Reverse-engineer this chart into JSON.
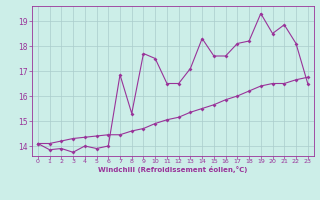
{
  "xlabel": "Windchill (Refroidissement éolien,°C)",
  "bg_color": "#cceee8",
  "grid_color": "#aacccc",
  "line_color": "#993399",
  "x_values": [
    0,
    1,
    2,
    3,
    4,
    5,
    6,
    7,
    8,
    9,
    10,
    11,
    12,
    13,
    14,
    15,
    16,
    17,
    18,
    19,
    20,
    21,
    22,
    23
  ],
  "line1_y": [
    14.1,
    13.85,
    13.9,
    13.75,
    14.0,
    13.9,
    14.0,
    16.85,
    15.3,
    17.7,
    17.5,
    16.5,
    16.5,
    17.1,
    18.3,
    17.6,
    17.6,
    18.1,
    18.2,
    19.3,
    18.5,
    18.85,
    18.1,
    16.5
  ],
  "line2_y": [
    14.1,
    14.1,
    14.2,
    14.3,
    14.35,
    14.4,
    14.45,
    14.45,
    14.6,
    14.7,
    14.9,
    15.05,
    15.15,
    15.35,
    15.5,
    15.65,
    15.85,
    16.0,
    16.2,
    16.4,
    16.5,
    16.5,
    16.65,
    16.75
  ],
  "ylim": [
    13.6,
    19.6
  ],
  "yticks": [
    14,
    15,
    16,
    17,
    18,
    19
  ],
  "xlim": [
    -0.5,
    23.5
  ],
  "xticks": [
    0,
    1,
    2,
    3,
    4,
    5,
    6,
    7,
    8,
    9,
    10,
    11,
    12,
    13,
    14,
    15,
    16,
    17,
    18,
    19,
    20,
    21,
    22,
    23
  ]
}
